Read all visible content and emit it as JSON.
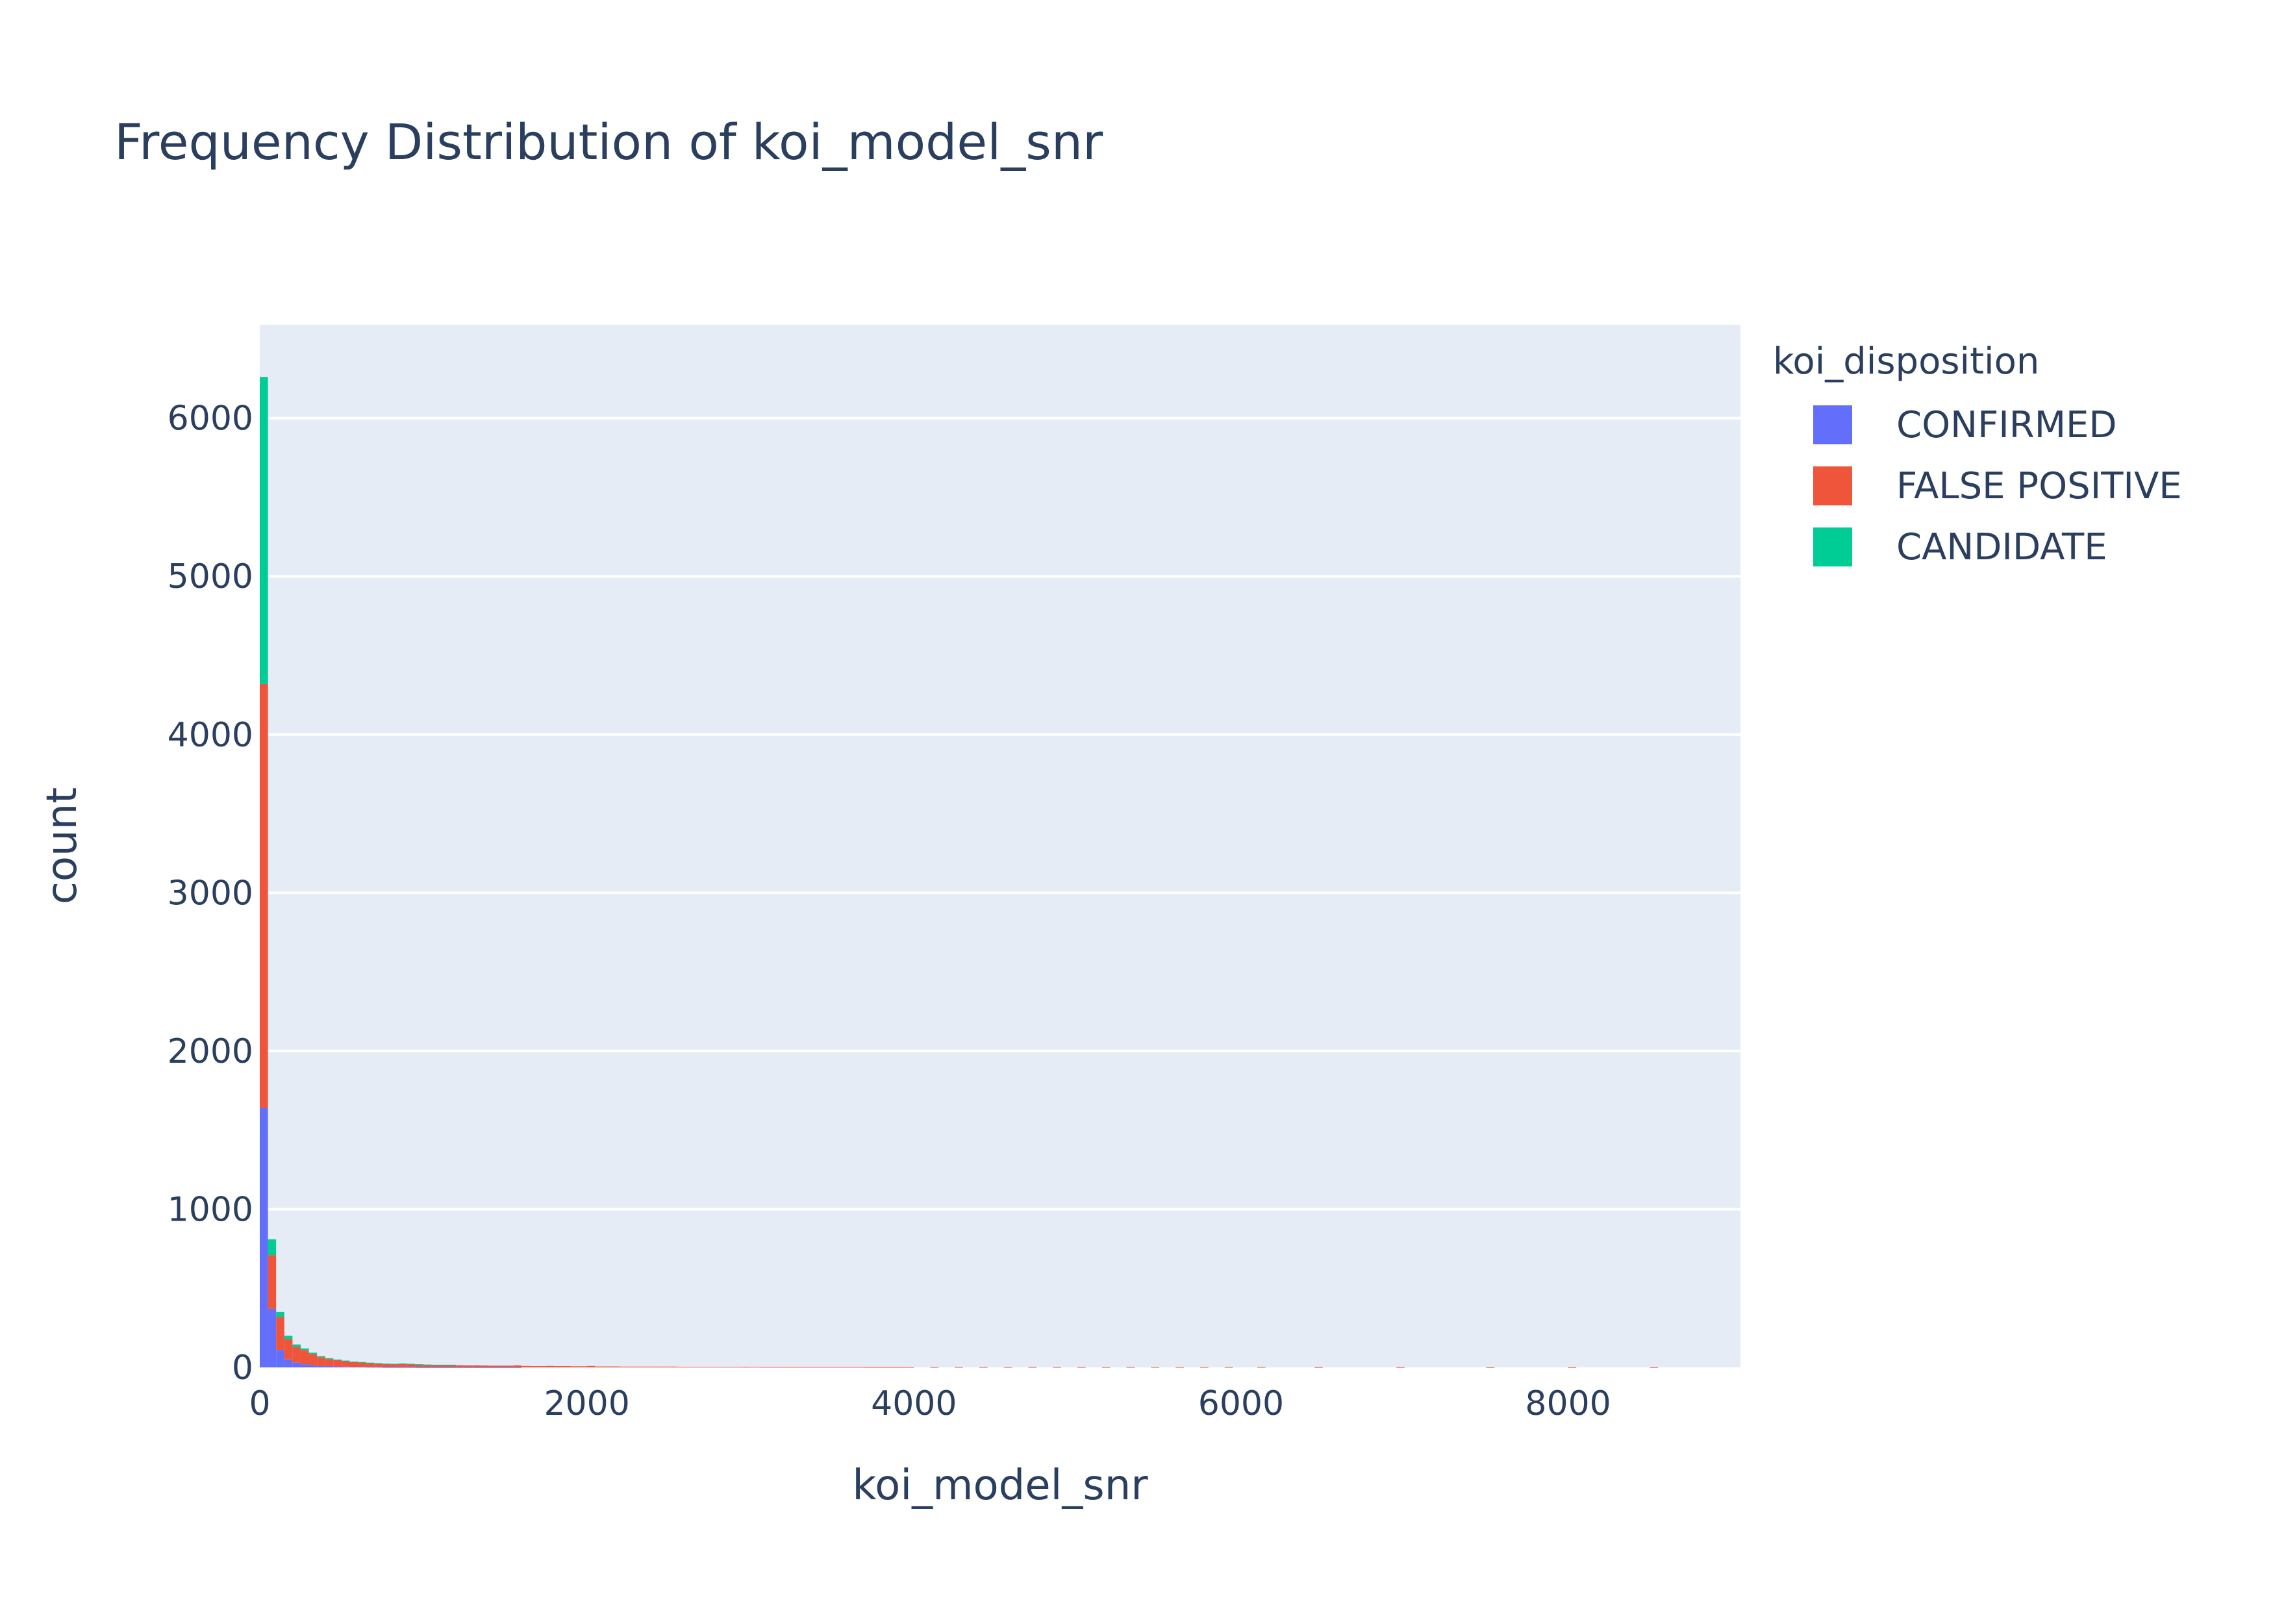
{
  "chart_data": {
    "type": "bar",
    "title": "Frequency Distribution of koi_model_snr",
    "xlabel": "koi_model_snr",
    "ylabel": "count",
    "xlim": [
      0,
      9054
    ],
    "ylim": [
      0,
      6590
    ],
    "x_ticks": [
      "0",
      "2000",
      "4000",
      "6000",
      "8000"
    ],
    "y_ticks": [
      "0",
      "1000",
      "2000",
      "3000",
      "4000",
      "5000",
      "6000"
    ],
    "grid": true,
    "barmode": "stack",
    "legend_title": "koi_disposition",
    "legend_position": "top-right",
    "bin_width": 50,
    "x": [
      25,
      75,
      125,
      175,
      225,
      275,
      325,
      375,
      425,
      475,
      525,
      575,
      625,
      675,
      725,
      775,
      825,
      875,
      925,
      975,
      1025,
      1075,
      1125,
      1175,
      1225,
      1275,
      1325,
      1375,
      1425,
      1475,
      1525,
      1575,
      1625,
      1675,
      1725,
      1775,
      1825,
      1875,
      1925,
      1975,
      2025,
      2075,
      2125,
      2175,
      2225,
      2275,
      2325,
      2375,
      2425,
      2475,
      2525,
      2575,
      2625,
      2675,
      2725,
      2775,
      2825,
      2875,
      2925,
      2975,
      3025,
      3075,
      3125,
      3175,
      3225,
      3275,
      3325,
      3375,
      3425,
      3475,
      3525,
      3575,
      3625,
      3675,
      3725,
      3775,
      3825,
      3875,
      3925,
      3975,
      4125,
      4275,
      4425,
      4575,
      4725,
      4875,
      5025,
      5175,
      5325,
      5475,
      5625,
      5775,
      5925,
      6125,
      6475,
      6975,
      7525,
      8025,
      8525
    ],
    "series": [
      {
        "name": "CONFIRMED",
        "color": "#636efa",
        "values": [
          1640,
          370,
          110,
          50,
          30,
          20,
          15,
          10,
          8,
          6,
          5,
          4,
          4,
          3,
          3,
          2,
          2,
          2,
          2,
          1,
          1,
          1,
          1,
          1,
          1,
          1,
          1,
          1,
          1,
          1,
          1,
          1,
          0,
          0,
          0,
          0,
          0,
          0,
          0,
          0,
          0,
          0,
          0,
          0,
          0,
          0,
          0,
          0,
          0,
          0,
          0,
          0,
          0,
          0,
          0,
          0,
          0,
          0,
          0,
          0,
          0,
          0,
          0,
          0,
          0,
          0,
          0,
          0,
          0,
          0,
          0,
          0,
          0,
          0,
          0,
          0,
          0,
          0,
          0,
          0,
          0,
          0,
          0,
          0,
          0,
          0,
          0,
          0,
          0,
          0,
          0,
          0,
          0,
          0,
          0,
          0,
          0,
          0,
          0
        ]
      },
      {
        "name": "FALSE POSITIVE",
        "color": "#EF553B",
        "values": [
          2680,
          340,
          210,
          130,
          100,
          90,
          70,
          55,
          45,
          40,
          35,
          30,
          28,
          25,
          22,
          20,
          20,
          22,
          20,
          18,
          16,
          15,
          15,
          15,
          13,
          12,
          12,
          11,
          10,
          10,
          10,
          12,
          9,
          8,
          8,
          9,
          8,
          8,
          7,
          7,
          9,
          6,
          6,
          6,
          5,
          5,
          5,
          5,
          5,
          5,
          5,
          4,
          4,
          4,
          4,
          4,
          4,
          4,
          4,
          3,
          4,
          3,
          3,
          3,
          3,
          3,
          3,
          3,
          3,
          3,
          3,
          3,
          3,
          3,
          2,
          2,
          2,
          2,
          2,
          2,
          2,
          2,
          2,
          2,
          2,
          2,
          2,
          2,
          2,
          2,
          2,
          2,
          2,
          2,
          1,
          1,
          1,
          1,
          1
        ]
      },
      {
        "name": "CANDIDATE",
        "color": "#00cc96",
        "values": [
          1940,
          100,
          30,
          20,
          15,
          10,
          8,
          6,
          5,
          4,
          3,
          3,
          2,
          2,
          2,
          2,
          1,
          1,
          1,
          1,
          1,
          1,
          1,
          1,
          0,
          0,
          0,
          0,
          0,
          0,
          0,
          0,
          0,
          0,
          0,
          0,
          0,
          0,
          0,
          0,
          0,
          0,
          0,
          0,
          0,
          0,
          0,
          0,
          0,
          0,
          0,
          0,
          0,
          0,
          0,
          0,
          0,
          0,
          0,
          0,
          0,
          0,
          0,
          0,
          0,
          0,
          0,
          0,
          0,
          0,
          0,
          0,
          0,
          0,
          0,
          0,
          0,
          0,
          0,
          0,
          0,
          0,
          0,
          0,
          0,
          0,
          0,
          0,
          0,
          0,
          0,
          0,
          0,
          0,
          0,
          0,
          0,
          0,
          0
        ]
      }
    ]
  },
  "colors": {
    "plot_background": "#e5ecf6",
    "gridline": "#ffffff",
    "text": "#2a3f5f"
  }
}
